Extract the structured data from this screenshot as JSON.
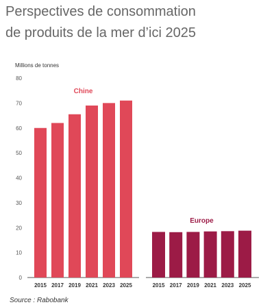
{
  "title_lines": [
    "Perspectives de consommation",
    "de produits de la mer d’ici 2025"
  ],
  "source": "Source : Rabobank",
  "chart_data": {
    "type": "bar",
    "ylabel": "Millions de tonnes",
    "ylim": [
      0,
      80
    ],
    "yticks": [
      0,
      10,
      20,
      30,
      40,
      50,
      60,
      70,
      80
    ],
    "grid": false,
    "categories": [
      "2015",
      "2017",
      "2019",
      "2021",
      "2023",
      "2025"
    ],
    "series": [
      {
        "name": "Chine",
        "color": "#e04858",
        "values": [
          60,
          62,
          65.5,
          69,
          70,
          71
        ]
      },
      {
        "name": "Europe",
        "color": "#9c1b46",
        "values": [
          18.3,
          18.2,
          18.3,
          18.5,
          18.6,
          18.8
        ]
      }
    ]
  }
}
